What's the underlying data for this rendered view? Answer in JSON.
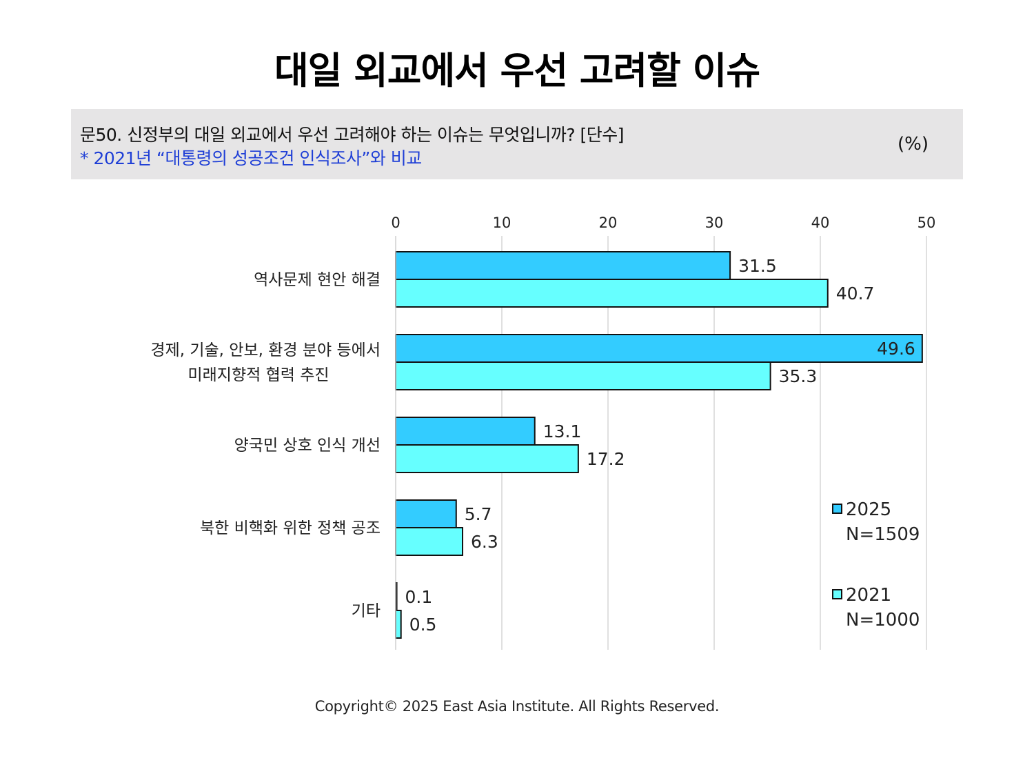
{
  "title": "대일 외교에서 우선 고려할 이슈",
  "question": {
    "text": "문50. 신정부의 대일 외교에서 우선 고려해야 하는 이슈는 무엇입니까? [단수]",
    "note": "* 2021년 “대통령의 성공조건 인식조사”와 비교",
    "unit": "(%)"
  },
  "chart_data": {
    "type": "bar",
    "orientation": "horizontal",
    "categories": [
      [
        "역사문제 현안 해결"
      ],
      [
        "경제, 기술, 안보, 환경 분야 등에서",
        "미래지향적 협력 추진"
      ],
      [
        "양국민 상호 인식 개선"
      ],
      [
        "북한 비핵화 위한 정책 공조"
      ],
      [
        "기타"
      ]
    ],
    "series": [
      {
        "name": "2025",
        "sample": "N=1509",
        "color": "#33ccff",
        "values": [
          31.5,
          49.6,
          13.1,
          5.7,
          0.1
        ],
        "labels": [
          "31.5",
          "49.6",
          "13.1",
          "5.7",
          "0.1"
        ]
      },
      {
        "name": "2021",
        "sample": "N=1000",
        "color": "#66ffff",
        "values": [
          40.7,
          35.3,
          17.2,
          6.3,
          0.5
        ],
        "labels": [
          "40.7",
          "35.3",
          "17.2",
          "6.3",
          "0.5"
        ]
      }
    ],
    "xlim": [
      0,
      50
    ],
    "xticks": [
      0,
      10,
      20,
      30,
      40,
      50
    ],
    "grid": true,
    "legend_position": "bottom-right"
  },
  "footer": "Copyright© 2025 East Asia Institute. All Rights Reserved."
}
